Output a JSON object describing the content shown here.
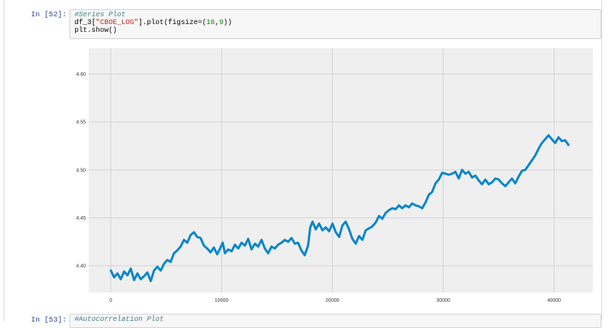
{
  "cells": [
    {
      "prompt": "In [52]:",
      "code": {
        "comment": "#Series Plot",
        "line2_a": "df_3[",
        "line2_string": "\"CBOE_LOG\"",
        "line2_b": "].plot(figsize=(",
        "line2_n1": "16",
        "line2_comma": ",",
        "line2_n2": "9",
        "line2_end": "))",
        "line3": "plt.show()"
      }
    },
    {
      "prompt": "In [53]:",
      "code": {
        "comment": "#Autocorrelation Plot"
      }
    }
  ],
  "colors": {
    "line": "#0a86c8",
    "plot_bg": "#efefef",
    "grid": "#d2d2d2"
  },
  "chart_data": {
    "type": "line",
    "title": "",
    "xlabel": "",
    "ylabel": "",
    "xlim": [
      -2000,
      43500
    ],
    "ylim": [
      4.372,
      4.627
    ],
    "grid": true,
    "x_ticks": [
      0,
      10000,
      20000,
      30000,
      40000
    ],
    "x_tick_labels": [
      "0",
      "10000",
      "20000",
      "30000",
      "40000"
    ],
    "y_ticks": [
      4.4,
      4.45,
      4.5,
      4.55,
      4.6
    ],
    "y_tick_labels": [
      "4.40",
      "4.45",
      "4.50",
      "4.55",
      "4.60"
    ],
    "series": [
      {
        "color": "#0a86c8",
        "x": [
          0,
          300,
          600,
          900,
          1200,
          1500,
          1800,
          2100,
          2400,
          2700,
          3000,
          3300,
          3600,
          3900,
          4200,
          4500,
          4800,
          5100,
          5400,
          5700,
          6000,
          6300,
          6600,
          6900,
          7200,
          7500,
          7800,
          8100,
          8400,
          8700,
          9000,
          9300,
          9600,
          9900,
          10100,
          10300,
          10600,
          10900,
          11200,
          11500,
          11800,
          12100,
          12400,
          12700,
          13000,
          13300,
          13600,
          13900,
          14200,
          14500,
          14800,
          15100,
          15400,
          15700,
          16000,
          16300,
          16600,
          16900,
          17200,
          17500,
          17800,
          18000,
          18200,
          18500,
          18800,
          19100,
          19400,
          19700,
          20000,
          20300,
          20600,
          20900,
          21200,
          21500,
          21800,
          22100,
          22400,
          22700,
          23000,
          23300,
          23600,
          23900,
          24200,
          24500,
          24800,
          25100,
          25400,
          25700,
          26000,
          26300,
          26600,
          26900,
          27200,
          27500,
          27800,
          28100,
          28400,
          28700,
          29000,
          29300,
          29600,
          29900,
          30200,
          30500,
          30800,
          31100,
          31400,
          31700,
          32000,
          32300,
          32600,
          32900,
          33200,
          33500,
          33800,
          34100,
          34400,
          34700,
          35000,
          35300,
          35600,
          35900,
          36200,
          36500,
          36800,
          37100,
          37400,
          37700,
          38000,
          38300,
          38600,
          38900,
          39200,
          39500,
          39800,
          40100,
          40400,
          40700,
          41000,
          41300
        ],
        "y": [
          4.395,
          4.388,
          4.392,
          4.386,
          4.394,
          4.39,
          4.397,
          4.385,
          4.392,
          4.386,
          4.389,
          4.393,
          4.384,
          4.395,
          4.399,
          4.395,
          4.402,
          4.406,
          4.404,
          4.413,
          4.416,
          4.42,
          4.427,
          4.424,
          4.432,
          4.435,
          4.43,
          4.429,
          4.421,
          4.418,
          4.414,
          4.419,
          4.412,
          4.419,
          4.424,
          4.413,
          4.417,
          4.415,
          4.422,
          4.418,
          4.424,
          4.421,
          4.428,
          4.417,
          4.423,
          4.42,
          4.427,
          4.418,
          4.413,
          4.42,
          4.418,
          4.422,
          4.424,
          4.427,
          4.425,
          4.429,
          4.423,
          4.424,
          4.416,
          4.411,
          4.421,
          4.44,
          4.446,
          4.438,
          4.444,
          4.437,
          4.44,
          4.436,
          4.444,
          4.435,
          4.43,
          4.442,
          4.446,
          4.438,
          4.428,
          4.423,
          4.431,
          4.427,
          4.437,
          4.439,
          4.441,
          4.445,
          4.452,
          4.449,
          4.455,
          4.458,
          4.46,
          4.459,
          4.463,
          4.46,
          4.463,
          4.461,
          4.465,
          4.463,
          4.462,
          4.46,
          4.466,
          4.474,
          4.477,
          4.486,
          4.49,
          4.497,
          4.496,
          4.495,
          4.496,
          4.498,
          4.491,
          4.5,
          4.496,
          4.498,
          4.492,
          4.494,
          4.489,
          4.485,
          4.49,
          4.485,
          4.487,
          4.491,
          4.49,
          4.486,
          4.483,
          4.487,
          4.491,
          4.486,
          4.493,
          4.499,
          4.5,
          4.505,
          4.51,
          4.515,
          4.522,
          4.528,
          4.532,
          4.536,
          4.532,
          4.528,
          4.534,
          4.53,
          4.531,
          4.526
        ]
      }
    ]
  }
}
